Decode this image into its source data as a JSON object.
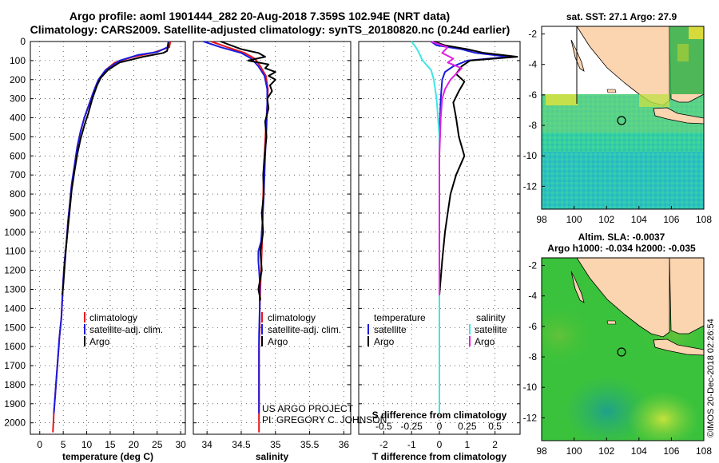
{
  "title_line1": "Argo profile: aoml 1901444_282 20-Aug-2018 7.359S 102.94E (NRT data)",
  "title_line2": "Climatology: CARS2009. Satellite-adjusted climatology: synTS_20180820.nc (0.24d earlier)",
  "credit_line1": "US ARGO PROJECT",
  "credit_line2": "PI: GREGORY C. JOHNSON",
  "watermark": "©IMOS 20-Dec-2018 02:26:54",
  "colors": {
    "red": "#e8141b",
    "blue": "#1a1adf",
    "black": "#000000",
    "cyan": "#3ee6e6",
    "magenta": "#e020e0"
  },
  "legend_temperature": [
    "climatology",
    "satellite-adj. clim.",
    "Argo"
  ],
  "legend_salinity": [
    "climatology",
    "satellite-adj. clim.",
    "Argo"
  ],
  "legend_diff": {
    "head_t": "temperature",
    "head_s": "salinity",
    "sat_t": "satellite",
    "argo_t": "Argo",
    "sat_s": "satellite",
    "argo_s": "Argo"
  },
  "chart_data": [
    {
      "type": "line",
      "xlabel": "temperature (deg C)",
      "ylabel": "",
      "xlim": [
        -2,
        31
      ],
      "ylim": [
        2060,
        0
      ],
      "xticks": [
        "0",
        "5",
        "10",
        "15",
        "20",
        "25",
        "30"
      ],
      "yticks": [
        "0",
        "100",
        "200",
        "300",
        "400",
        "500",
        "600",
        "700",
        "800",
        "900",
        "1000",
        "1100",
        "1200",
        "1300",
        "1400",
        "1500",
        "1600",
        "1700",
        "1800",
        "1900",
        "2000"
      ],
      "series": [
        {
          "name": "climatology",
          "color": "red",
          "x": [
            27.8,
            27.6,
            24,
            20,
            16,
            14,
            12.5,
            11.5,
            10.5,
            9.5,
            8.7,
            8,
            7.4,
            6.8,
            6.4,
            6,
            5.7,
            5.3,
            5,
            4.8,
            4.6,
            4.2,
            3.9,
            3.6,
            3.3,
            3,
            2.8
          ],
          "y": [
            0,
            30,
            60,
            80,
            110,
            150,
            200,
            260,
            330,
            400,
            470,
            550,
            650,
            750,
            850,
            950,
            1050,
            1150,
            1250,
            1350,
            1450,
            1550,
            1650,
            1750,
            1850,
            1950,
            2050
          ]
        },
        {
          "name": "satellite-adj. clim.",
          "color": "blue",
          "x": [
            27.4,
            27.2,
            25,
            21,
            17,
            14,
            12.5,
            11.5,
            10.5,
            9.5,
            8.7,
            8,
            7.4,
            6.8,
            6.4,
            6,
            5.7,
            5.3,
            5,
            4.8,
            4.6,
            4.2,
            3.9,
            3.6,
            3.3,
            3
          ],
          "y": [
            0,
            30,
            55,
            70,
            100,
            150,
            200,
            260,
            330,
            400,
            470,
            550,
            650,
            750,
            850,
            950,
            1050,
            1150,
            1250,
            1350,
            1450,
            1550,
            1650,
            1750,
            1850,
            1950
          ]
        },
        {
          "name": "Argo",
          "color": "black",
          "x": [
            27.4,
            27.3,
            27.1,
            26.3,
            22,
            17,
            14.5,
            13,
            12.2,
            11.2,
            10.3,
            9.5,
            8.7,
            8,
            7.4,
            6.8,
            6.4,
            6,
            5.6,
            5.3,
            5,
            4.8
          ],
          "y": [
            5,
            30,
            50,
            60,
            80,
            110,
            150,
            190,
            230,
            300,
            380,
            440,
            510,
            590,
            680,
            780,
            880,
            980,
            1080,
            1180,
            1280,
            1330
          ]
        }
      ]
    },
    {
      "type": "line",
      "xlabel": "salinity",
      "ylabel": "",
      "xlim": [
        33.8,
        36.1
      ],
      "ylim": [
        2060,
        0
      ],
      "xticks": [
        "34",
        "34.5",
        "35",
        "35.5",
        "36"
      ],
      "series": [
        {
          "name": "climatology",
          "color": "red",
          "x": [
            34.06,
            34.3,
            34.55,
            34.7,
            34.78,
            34.86,
            34.89,
            34.88,
            34.86,
            34.84,
            34.82,
            34.81,
            34.8,
            34.79,
            34.78,
            34.77,
            34.77,
            34.76,
            34.76,
            34.76,
            34.76
          ],
          "y": [
            0,
            30,
            60,
            90,
            130,
            180,
            250,
            330,
            450,
            600,
            800,
            1000,
            1100,
            1200,
            1300,
            1400,
            1500,
            1600,
            1700,
            1800,
            2050
          ]
        },
        {
          "name": "satellite-adj. clim.",
          "color": "blue",
          "x": [
            33.95,
            34.2,
            34.5,
            34.65,
            34.75,
            34.84,
            34.88,
            34.88,
            34.87,
            34.85,
            34.83,
            34.81,
            34.79,
            34.75,
            34.75,
            34.77,
            34.77,
            34.76,
            34.76,
            34.76,
            34.76
          ],
          "y": [
            0,
            30,
            60,
            90,
            130,
            180,
            250,
            330,
            450,
            600,
            800,
            950,
            1050,
            1100,
            1150,
            1250,
            1400,
            1550,
            1700,
            1850,
            1950
          ]
        },
        {
          "name": "Argo",
          "color": "black",
          "x": [
            34.2,
            34.35,
            34.5,
            34.75,
            34.85,
            34.6,
            34.9,
            34.85,
            35.0,
            34.9,
            35.0,
            34.92,
            34.95,
            34.88,
            34.9,
            34.85,
            34.87,
            34.84,
            34.82,
            34.83,
            34.8,
            34.82,
            34.78,
            34.8,
            34.75,
            34.78,
            34.77
          ],
          "y": [
            0,
            20,
            40,
            60,
            80,
            100,
            120,
            140,
            160,
            180,
            200,
            230,
            260,
            300,
            350,
            420,
            500,
            600,
            700,
            800,
            900,
            1000,
            1100,
            1200,
            1300,
            1350,
            1360
          ]
        }
      ]
    },
    {
      "type": "line",
      "xlabel": "T difference from climatology",
      "xlabel_top": "S difference from climatology",
      "xlim": [
        -2.9,
        2.9
      ],
      "ylim": [
        2060,
        0
      ],
      "xticks": [
        "-2",
        "-1",
        "0",
        "1",
        "2"
      ],
      "xticks_top": [
        "-0.5",
        "-0.25",
        "0",
        "0.25",
        "0.5"
      ],
      "series": [
        {
          "name": "temperature satellite",
          "color": "blue",
          "x": [
            -0.3,
            -0.1,
            0.8,
            1.3,
            2.5,
            1.0,
            0.5,
            0.2,
            0.1,
            0.05,
            0.0,
            0.0,
            0.0,
            0.0,
            0.0
          ],
          "y": [
            0,
            20,
            40,
            60,
            80,
            100,
            130,
            160,
            200,
            300,
            500,
            800,
            1100,
            1500,
            1950
          ]
        },
        {
          "name": "temperature Argo",
          "color": "black",
          "x": [
            -0.2,
            0.2,
            1.0,
            1.6,
            2.8,
            1.1,
            0.8,
            0.6,
            0.9,
            0.7,
            0.5,
            0.6,
            0.7,
            0.9,
            0.6,
            0.4,
            0.3,
            0.2,
            0.1,
            0.0
          ],
          "y": [
            0,
            20,
            40,
            60,
            80,
            100,
            130,
            170,
            210,
            260,
            320,
            400,
            500,
            600,
            700,
            800,
            900,
            1000,
            1150,
            1330
          ]
        },
        {
          "name": "salinity satellite",
          "color": "cyan",
          "x": [
            -1.0,
            -0.8,
            -0.6,
            -0.3,
            -0.2,
            -0.1,
            0.0,
            0.0,
            0.0,
            0.0,
            0.0
          ],
          "y": [
            0,
            40,
            100,
            150,
            200,
            300,
            500,
            800,
            1100,
            1500,
            1950
          ]
        },
        {
          "name": "salinity Argo",
          "color": "magenta",
          "x": [
            -0.3,
            0.3,
            0.1,
            0.5,
            0.3,
            0.8,
            0.6,
            0.4,
            0.2,
            0.1,
            0.05,
            0.0,
            0.0,
            0.0,
            0.0,
            0.0
          ],
          "y": [
            0,
            30,
            60,
            90,
            110,
            140,
            170,
            200,
            250,
            300,
            400,
            600,
            800,
            1000,
            1200,
            1330
          ]
        }
      ]
    }
  ],
  "map_top": {
    "title": "sat. SST: 27.1  Argo: 27.9",
    "xticks": [
      "98",
      "100",
      "102",
      "104",
      "106",
      "108"
    ],
    "yticks": [
      "-2",
      "-4",
      "-6",
      "-8",
      "-10",
      "-12"
    ]
  },
  "map_bottom": {
    "title_line1": "Altim. SLA: -0.0037",
    "title_line2": "Argo h1000: -0.034 h2000: -0.035",
    "xticks": [
      "98",
      "100",
      "102",
      "104",
      "106",
      "108"
    ],
    "yticks": [
      "-2",
      "-4",
      "-6",
      "-8",
      "-10",
      "-12"
    ]
  }
}
